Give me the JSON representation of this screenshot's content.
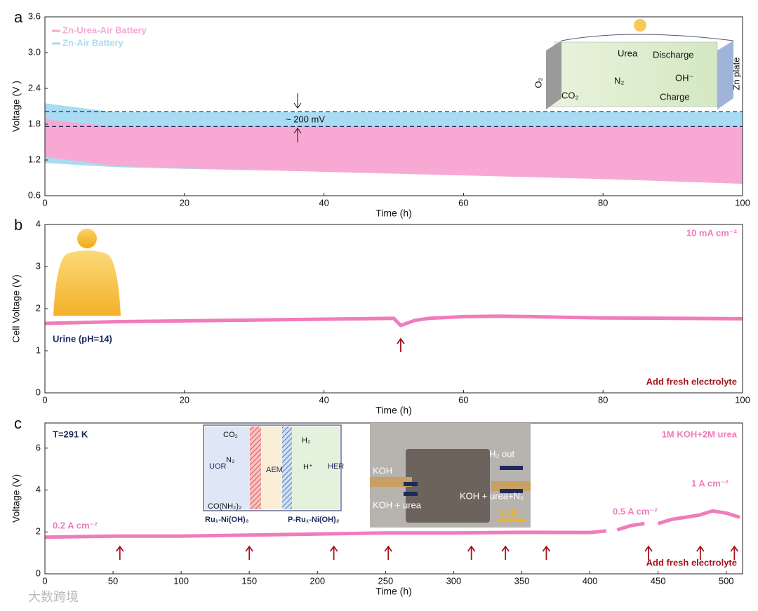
{
  "chart_data": [
    {
      "type": "area",
      "panel": "a",
      "ylabel": "Voltage (V )",
      "xlabel": "Time (h)",
      "xlim": [
        0,
        100
      ],
      "xticks": [
        0,
        20,
        40,
        60,
        80,
        100
      ],
      "ylim": [
        0.6,
        3.6
      ],
      "yticks": [
        0.6,
        1.2,
        1.8,
        2.4,
        {
          "value": 3.0,
          "label": "3.0"
        },
        3.6
      ],
      "legend": "top-left",
      "x": [
        0,
        10,
        20,
        30,
        40,
        50,
        60,
        70,
        80,
        90,
        100
      ],
      "series": [
        {
          "name": "Zn-Air Battery",
          "color": "#a9dbf2",
          "high": [
            2.15,
            2.0,
            2.0,
            2.0,
            2.0,
            2.0,
            2.0,
            2.0,
            2.0,
            2.0,
            2.0
          ],
          "low": [
            1.15,
            1.08,
            1.05,
            1.03,
            1.02,
            1.01,
            1.0,
            0.99,
            0.98,
            0.97,
            0.96
          ]
        },
        {
          "name": "Zn-Urea-Air Battery",
          "color": "#f7a9d4",
          "high": [
            1.88,
            1.76,
            1.76,
            1.76,
            1.76,
            1.76,
            1.76,
            1.76,
            1.76,
            1.76,
            1.76
          ],
          "low": [
            1.25,
            1.1,
            1.06,
            1.03,
            1.0,
            0.97,
            0.94,
            0.91,
            0.88,
            0.84,
            0.8
          ]
        }
      ],
      "hlines": [
        2.01,
        1.76
      ],
      "annotations": [
        "~ 200 mV",
        "Urea",
        "Discharge",
        "O₂",
        "N₂",
        "CO₂",
        "OH⁻",
        "Charge",
        "Zn plate"
      ]
    },
    {
      "type": "line",
      "panel": "b",
      "ylabel": "Cell Voltage (V)",
      "xlabel": "Time (h)",
      "xlim": [
        0,
        100
      ],
      "xticks": [
        0,
        20,
        40,
        60,
        80,
        100
      ],
      "ylim": [
        0,
        4
      ],
      "yticks": [
        0,
        1,
        2,
        3,
        4
      ],
      "x": [
        0,
        10,
        20,
        30,
        40,
        50,
        51,
        53,
        55,
        60,
        65,
        70,
        80,
        90,
        100
      ],
      "series": [
        {
          "name": "Urine (pH=14)",
          "color": "#f07cbc",
          "values": [
            1.65,
            1.69,
            1.71,
            1.73,
            1.75,
            1.77,
            1.6,
            1.72,
            1.77,
            1.81,
            1.82,
            1.81,
            1.78,
            1.77,
            1.76
          ]
        }
      ],
      "event_x": [
        51
      ],
      "annotations": [
        "10 mA cm⁻²",
        "Add fresh electrolyte"
      ]
    },
    {
      "type": "line",
      "panel": "c",
      "ylabel": "Voltage (V)",
      "xlabel": "Time (h)",
      "xlim": [
        0,
        512
      ],
      "xticks": [
        0,
        50,
        100,
        150,
        200,
        250,
        300,
        350,
        400,
        450,
        500
      ],
      "ylim": [
        0,
        7.2
      ],
      "yticks": [
        0,
        2,
        4,
        6
      ],
      "x": [
        0,
        50,
        100,
        150,
        200,
        250,
        300,
        350,
        400,
        412,
        416,
        420,
        430,
        440,
        446,
        450,
        460,
        470,
        480,
        490,
        500,
        510
      ],
      "series": [
        {
          "name": "T=291 K",
          "color": "#f07cbc",
          "values": [
            1.75,
            1.8,
            1.8,
            1.85,
            1.9,
            1.95,
            1.95,
            1.98,
            1.97,
            2.05,
            null,
            2.1,
            2.3,
            2.4,
            null,
            2.4,
            2.6,
            2.7,
            2.8,
            3.0,
            2.9,
            2.7
          ]
        }
      ],
      "event_x": [
        55,
        150,
        212,
        252,
        313,
        338,
        368,
        443,
        481,
        506
      ],
      "annotations": [
        "1M KOH+2M urea",
        "0.2 A cm⁻²",
        "0.5 A cm⁻²",
        "1 A cm⁻²",
        "Add fresh electrolyte",
        "UOR",
        "AEM",
        "HER",
        "CO₂",
        "N₂",
        "H₂",
        "H⁺",
        "CO(NH₂)₂",
        "Ru₁-Ni(OH)₂",
        "P-Ru₁-Ni(OH)₂",
        "KOH",
        "H₂ out",
        "KOH + urea",
        "KOH + urea+N₂",
        "3 cm"
      ]
    }
  ],
  "watermark": "大数跨境"
}
